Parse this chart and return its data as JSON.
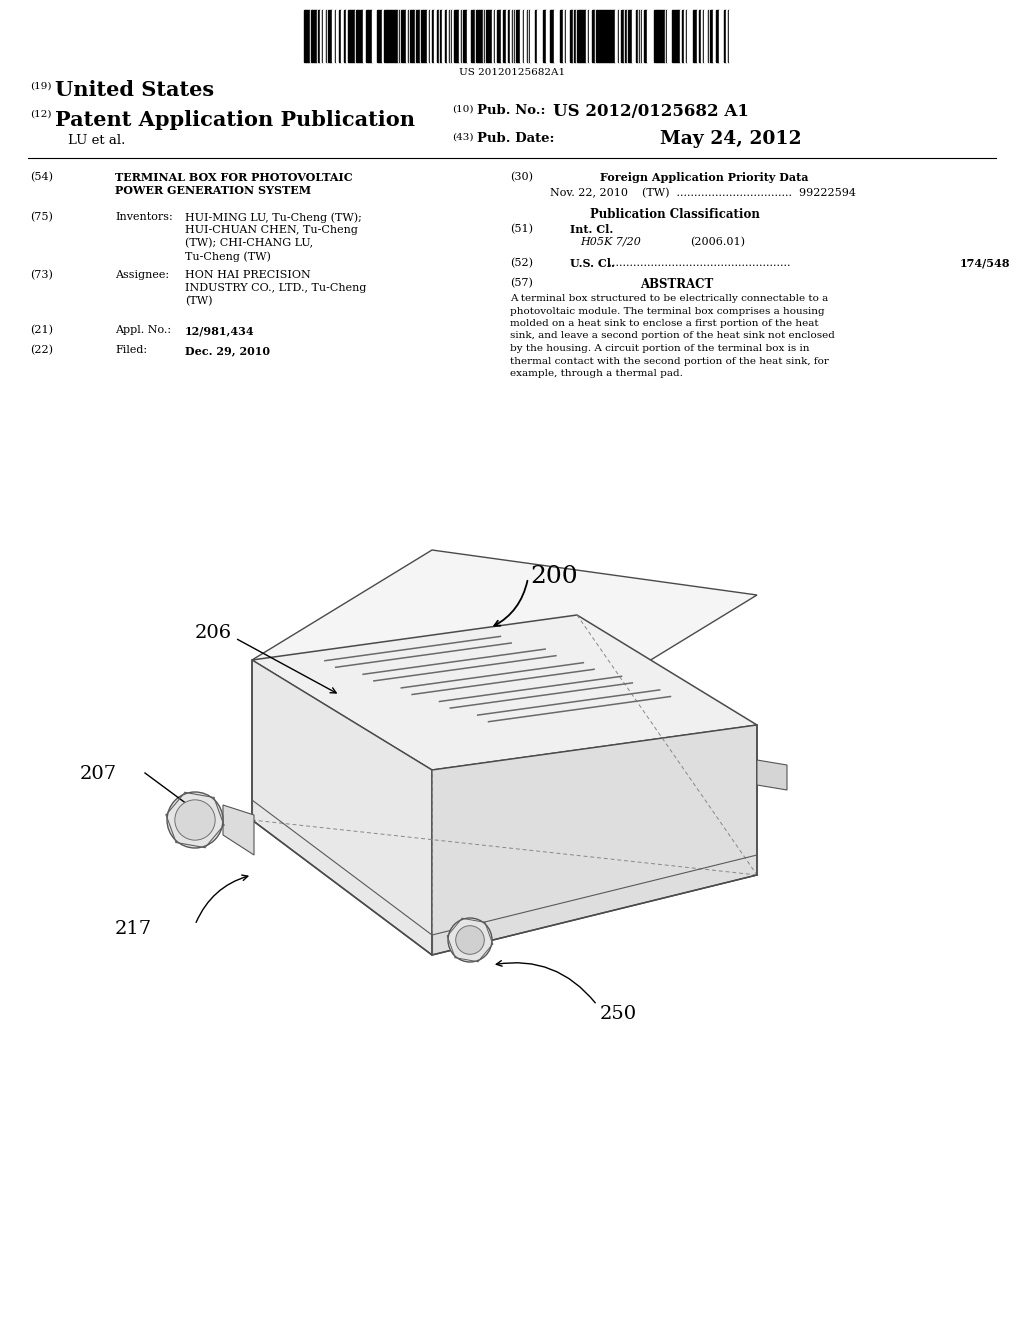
{
  "background_color": "#ffffff",
  "barcode_text": "US 20120125682A1",
  "header": {
    "number_19": "(19)",
    "united_states": "United States",
    "number_12": "(12)",
    "patent_app": "Patent Application Publication",
    "number_10": "(10)",
    "pub_no_label": "Pub. No.:",
    "pub_no_value": "US 2012/0125682 A1",
    "lu_et_al": "LU et al.",
    "number_43": "(43)",
    "pub_date_label": "Pub. Date:",
    "pub_date_value": "May 24, 2012"
  },
  "left_col": {
    "num_54": "(54)",
    "title_line1": "TERMINAL BOX FOR PHOTOVOLTAIC",
    "title_line2": "POWER GENERATION SYSTEM",
    "num_75": "(75)",
    "inventors_label": "Inventors:",
    "inv_line1": "HUI-MING LU, Tu-Cheng (TW);",
    "inv_line2": "HUI-CHUAN CHEN, Tu-Cheng",
    "inv_line3": "(TW); CHI-CHANG LU,",
    "inv_line4": "Tu-Cheng (TW)",
    "num_73": "(73)",
    "assignee_label": "Assignee:",
    "asgn_line1": "HON HAI PRECISION",
    "asgn_line2": "INDUSTRY CO., LTD., Tu-Cheng",
    "asgn_line3": "(TW)",
    "num_21": "(21)",
    "appl_label": "Appl. No.:",
    "appl_value": "12/981,434",
    "num_22": "(22)",
    "filed_label": "Filed:",
    "filed_value": "Dec. 29, 2010"
  },
  "right_col": {
    "num_30": "(30)",
    "foreign_title": "Foreign Application Priority Data",
    "foreign_line": "Nov. 22, 2010    (TW)  .................................  99222594",
    "pub_class_title": "Publication Classification",
    "num_51": "(51)",
    "int_cl_label": "Int. Cl.",
    "int_cl_value": "H05K 7/20",
    "int_cl_year": "(2006.01)",
    "num_52": "(52)",
    "us_cl_label": "U.S. Cl.",
    "us_cl_value": "174/548",
    "num_57": "(57)",
    "abstract_title": "ABSTRACT",
    "abstract_lines": [
      "A terminal box structured to be electrically connectable to a",
      "photovoltaic module. The terminal box comprises a housing",
      "molded on a heat sink to enclose a first portion of the heat",
      "sink, and leave a second portion of the heat sink not enclosed",
      "by the housing. A circuit portion of the terminal box is in",
      "thermal contact with the second portion of the heat sink, for",
      "example, through a thermal pad."
    ]
  },
  "diagram": {
    "label_200": "200",
    "label_206": "206",
    "label_207": "207",
    "label_217": "217",
    "label_250": "250"
  }
}
